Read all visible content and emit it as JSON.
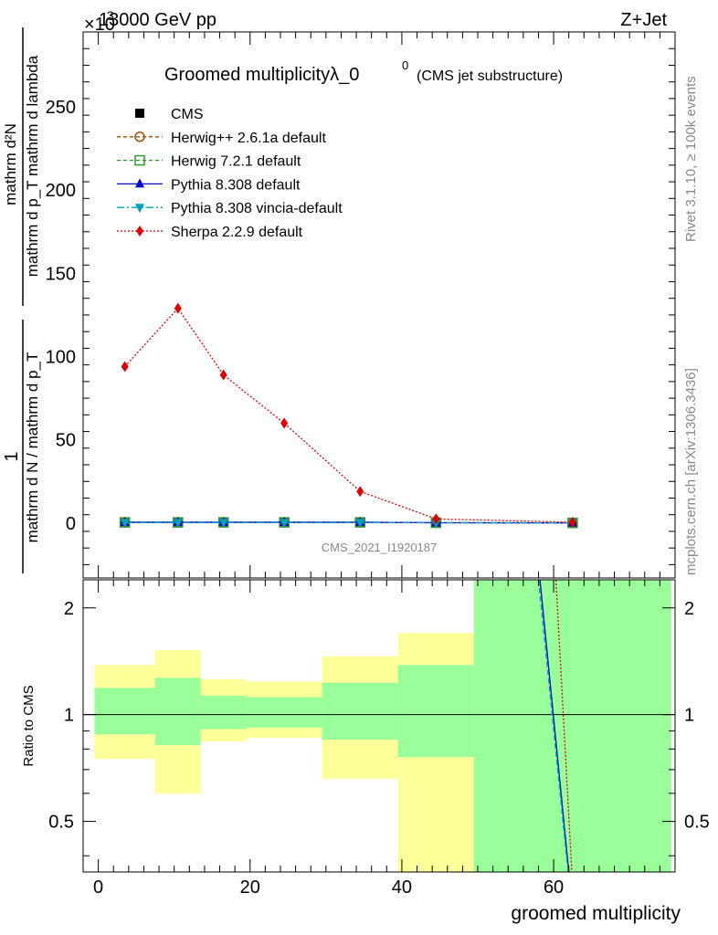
{
  "header": {
    "energy": "13000 GeV pp",
    "process": "Z+Jet",
    "exponent": "×10",
    "exponent_power": "3"
  },
  "side_labels": {
    "rivet": "Rivet 3.1.10, ≥ 100k events",
    "mcplots": "mcplots.cern.ch [arXiv:1306.3436]"
  },
  "chart_data": [
    {
      "type": "line",
      "title_main": "Groomed multiplicityλ_0",
      "title_sup": "0",
      "title_sub": "(CMS jet substructure)",
      "watermark": "CMS_2021_I1920187",
      "ylabel_num": "mathrm d²N",
      "ylabel_den": "mathrm d p_T mathrm d lambda",
      "ylabel_pre": "1",
      "ylabel_pre_den": "mathrm d N / mathrm d p_T",
      "xlim": [
        -2,
        76
      ],
      "ylim": [
        -33,
        295
      ],
      "y_ticks": [
        0,
        50,
        100,
        150,
        200,
        250
      ],
      "y_tick_labels": [
        "0",
        "50",
        "100",
        "150",
        "200",
        "250"
      ],
      "x": [
        3.5,
        10.5,
        16.5,
        24.5,
        34.5,
        44.5,
        62.5
      ],
      "series": [
        {
          "name": "CMS",
          "color": "#000000",
          "marker": "square",
          "values": [
            0.3,
            0.3,
            0.3,
            0.3,
            0.3,
            0.2,
            0.1
          ]
        },
        {
          "name": "Herwig++ 2.6.1a default",
          "color": "#a05000",
          "marker": "circle-open",
          "dash": "4,3",
          "values": [
            0.4,
            0.4,
            0.4,
            0.4,
            0.4,
            0.2,
            0.1
          ]
        },
        {
          "name": "Herwig 7.2.1 default",
          "color": "#2a9a2a",
          "marker": "square-open",
          "dash": "4,3",
          "values": [
            0.4,
            0.4,
            0.4,
            0.4,
            0.4,
            0.2,
            0.1
          ]
        },
        {
          "name": "Pythia 8.308 default",
          "color": "#0000cc",
          "marker": "triangle-up",
          "dash": "",
          "values": [
            0.5,
            0.5,
            0.5,
            0.5,
            0.5,
            0.2,
            0.1
          ]
        },
        {
          "name": "Pythia 8.308 vincia-default",
          "color": "#00a0c0",
          "marker": "triangle-down",
          "dash": "8,3,2,3",
          "values": [
            0.3,
            0.3,
            0.3,
            0.3,
            0.3,
            0.2,
            0.1
          ]
        },
        {
          "name": "Sherpa 2.2.9 default",
          "color": "#e00000",
          "marker": "diamond",
          "dash": "2,2",
          "values": [
            94,
            129,
            89,
            60,
            19,
            2.5,
            0.5
          ]
        }
      ]
    },
    {
      "type": "area",
      "ylabel": "Ratio to CMS",
      "xlabel": "groomed multiplicity",
      "ylim_log": [
        0.36,
        2.4
      ],
      "y_ticks": [
        0.5,
        1,
        2
      ],
      "y_tick_labels": [
        "0.5",
        "1",
        "2"
      ],
      "x_ticks": [
        0,
        20,
        40,
        60
      ],
      "x_tick_labels": [
        "0",
        "20",
        "40",
        "60"
      ],
      "bins": [
        {
          "lo": -0.5,
          "hi": 7.5,
          "green": [
            0.88,
            1.19
          ],
          "yellow": [
            0.75,
            1.38
          ]
        },
        {
          "lo": 7.5,
          "hi": 13.5,
          "green": [
            0.82,
            1.27
          ],
          "yellow": [
            0.6,
            1.52
          ]
        },
        {
          "lo": 13.5,
          "hi": 19.5,
          "green": [
            0.91,
            1.13
          ],
          "yellow": [
            0.84,
            1.26
          ]
        },
        {
          "lo": 19.5,
          "hi": 29.5,
          "green": [
            0.92,
            1.12
          ],
          "yellow": [
            0.86,
            1.24
          ]
        },
        {
          "lo": 29.5,
          "hi": 39.5,
          "green": [
            0.85,
            1.23
          ],
          "yellow": [
            0.66,
            1.46
          ]
        },
        {
          "lo": 39.5,
          "hi": 49.5,
          "green": [
            0.76,
            1.38
          ],
          "yellow": [
            0.36,
            1.7
          ]
        },
        {
          "lo": 49.5,
          "hi": 75.5,
          "green": [
            0.36,
            2.4
          ],
          "yellow": [
            0.36,
            2.4
          ]
        }
      ],
      "ratio_lines": [
        {
          "name": "Pythia 8.308 default",
          "color": "#0000cc",
          "dash": "",
          "points": [
            [
              58.2,
              2.4
            ],
            [
              62.0,
              0.36
            ]
          ]
        },
        {
          "name": "Pythia 8.308 vincia-default",
          "color": "#00a0c0",
          "dash": "6,3",
          "points": [
            [
              58.0,
              2.4
            ],
            [
              61.9,
              0.36
            ]
          ]
        },
        {
          "name": "Sherpa 2.2.9 default",
          "color": "#e00000",
          "dash": "2,2",
          "points": [
            [
              60.3,
              2.4
            ],
            [
              62.4,
              0.36
            ]
          ]
        }
      ]
    }
  ]
}
